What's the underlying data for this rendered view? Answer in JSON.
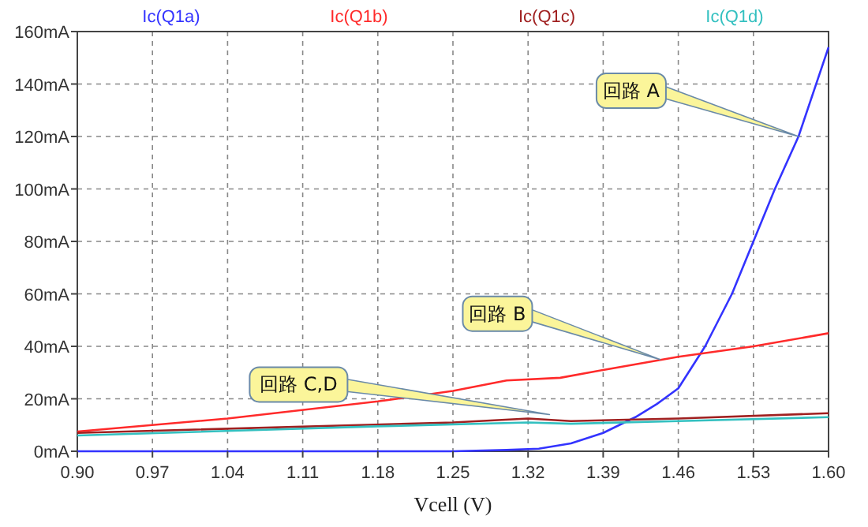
{
  "chart_data": {
    "type": "line",
    "xlabel": "Vcell (V)",
    "legend": "top",
    "grid": true,
    "line_style": "solid",
    "marker": "none",
    "xlim": [
      0.9,
      1.6
    ],
    "xticks": [
      {
        "value": 0.9,
        "label": "0.90"
      },
      {
        "value": 0.97,
        "label": "0.97"
      },
      {
        "value": 1.04,
        "label": "1.04"
      },
      {
        "value": 1.11,
        "label": "1.11"
      },
      {
        "value": 1.18,
        "label": "1.18"
      },
      {
        "value": 1.25,
        "label": "1.25"
      },
      {
        "value": 1.32,
        "label": "1.32"
      },
      {
        "value": 1.39,
        "label": "1.39"
      },
      {
        "value": 1.46,
        "label": "1.46"
      },
      {
        "value": 1.53,
        "label": "1.53"
      },
      {
        "value": 1.6,
        "label": "1.60"
      }
    ],
    "ylim": [
      0,
      160
    ],
    "yticks": [
      {
        "value": 0,
        "label": "0mA"
      },
      {
        "value": 20,
        "label": "20mA"
      },
      {
        "value": 40,
        "label": "40mA"
      },
      {
        "value": 60,
        "label": "60mA"
      },
      {
        "value": 80,
        "label": "80mA"
      },
      {
        "value": 100,
        "label": "100mA"
      },
      {
        "value": 120,
        "label": "120mA"
      },
      {
        "value": 140,
        "label": "140mA"
      },
      {
        "value": 160,
        "label": "160mA"
      }
    ],
    "series": [
      {
        "name": "Ic(Q1a)",
        "color": "#3333ff",
        "x": [
          0.9,
          1.1,
          1.25,
          1.3,
          1.33,
          1.36,
          1.39,
          1.42,
          1.44,
          1.46,
          1.485,
          1.51,
          1.53,
          1.55,
          1.572,
          1.6
        ],
        "values": [
          0,
          0,
          0,
          0.5,
          1,
          3,
          7,
          13,
          18,
          24,
          40,
          60,
          80,
          100,
          120,
          154
        ]
      },
      {
        "name": "Ic(Q1b)",
        "color": "#ff2a2a",
        "x": [
          0.9,
          1.04,
          1.18,
          1.25,
          1.3,
          1.35,
          1.39,
          1.46,
          1.53,
          1.6
        ],
        "values": [
          7.5,
          12.5,
          19,
          23,
          27,
          28,
          31,
          36,
          40,
          45
        ]
      },
      {
        "name": "Ic(Q1c)",
        "color": "#a02020",
        "x": [
          0.9,
          1.25,
          1.32,
          1.36,
          1.46,
          1.6
        ],
        "values": [
          7,
          11,
          12.5,
          11.5,
          12.5,
          14.5
        ]
      },
      {
        "name": "Ic(Q1d)",
        "color": "#33c0c0",
        "x": [
          0.9,
          1.18,
          1.32,
          1.36,
          1.46,
          1.6
        ],
        "values": [
          6,
          9.5,
          11,
          10.5,
          11.5,
          13
        ]
      }
    ],
    "annotations": [
      {
        "text": "回路 A",
        "x": 1.572,
        "y": 120
      },
      {
        "text": "回路 B",
        "x": 1.443,
        "y": 35
      },
      {
        "text": "回路 C,D",
        "x": 1.34,
        "y": 14
      }
    ]
  }
}
